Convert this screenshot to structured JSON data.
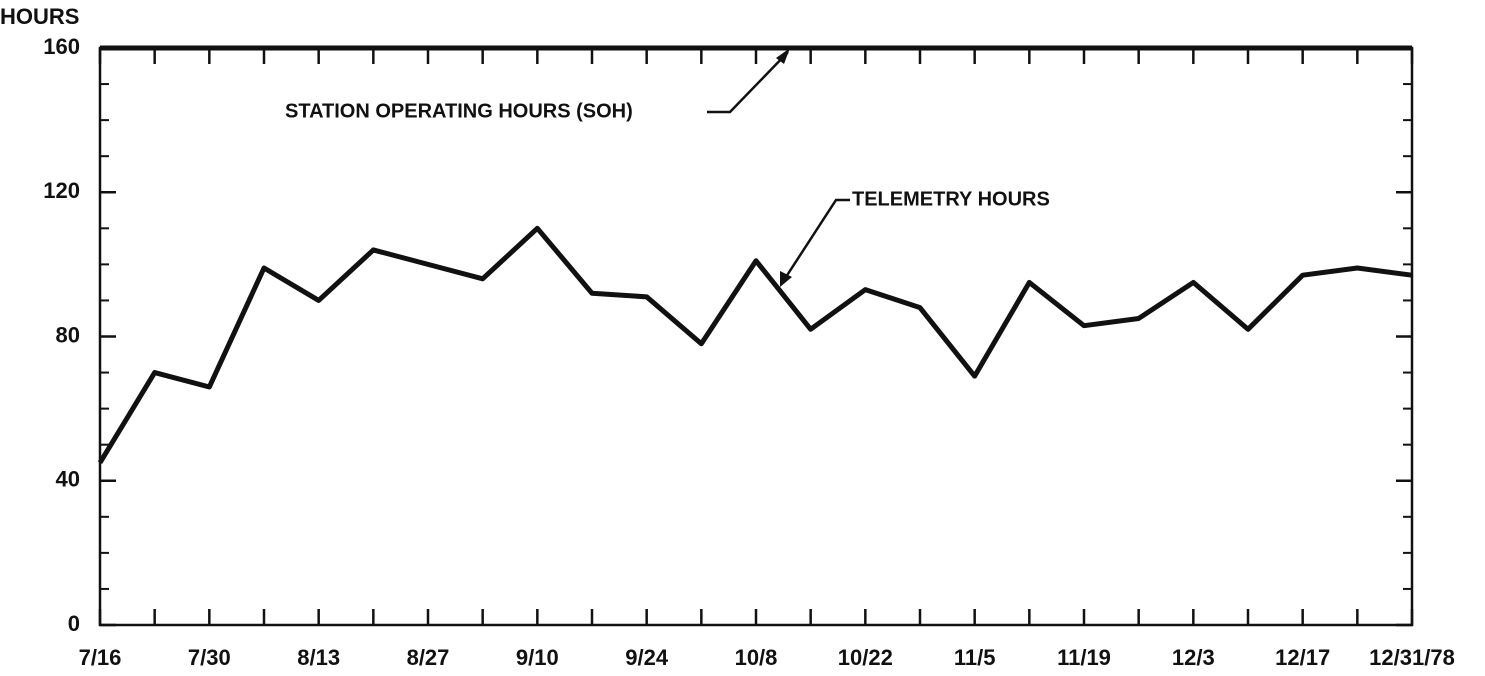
{
  "chart_data": {
    "type": "line",
    "y_label": "HOURS",
    "categories": [
      "7/16",
      null,
      "7/30",
      null,
      "8/13",
      null,
      "8/27",
      null,
      "9/10",
      null,
      "9/24",
      null,
      "10/8",
      null,
      "10/22",
      null,
      "11/5",
      null,
      "11/19",
      null,
      "12/3",
      null,
      "12/17",
      null,
      "12/31/78"
    ],
    "series": [
      {
        "name": "STATION OPERATING HOURS (SOH)",
        "color": "#111111",
        "values": [
          160,
          160,
          160,
          160,
          160,
          160,
          160,
          160,
          160,
          160,
          160,
          160,
          160,
          160,
          160,
          160,
          160,
          160,
          160,
          160,
          160,
          160,
          160,
          160,
          160
        ]
      },
      {
        "name": "TELEMETRY HOURS",
        "color": "#111111",
        "values": [
          45,
          70,
          66,
          99,
          90,
          104,
          100,
          96,
          110,
          92,
          91,
          78,
          101,
          82,
          93,
          88,
          69,
          95,
          83,
          85,
          95,
          82,
          97,
          99,
          97
        ]
      }
    ],
    "ylim": [
      0,
      160
    ],
    "yticks": [
      0,
      40,
      80,
      120,
      160
    ],
    "grid": false
  }
}
